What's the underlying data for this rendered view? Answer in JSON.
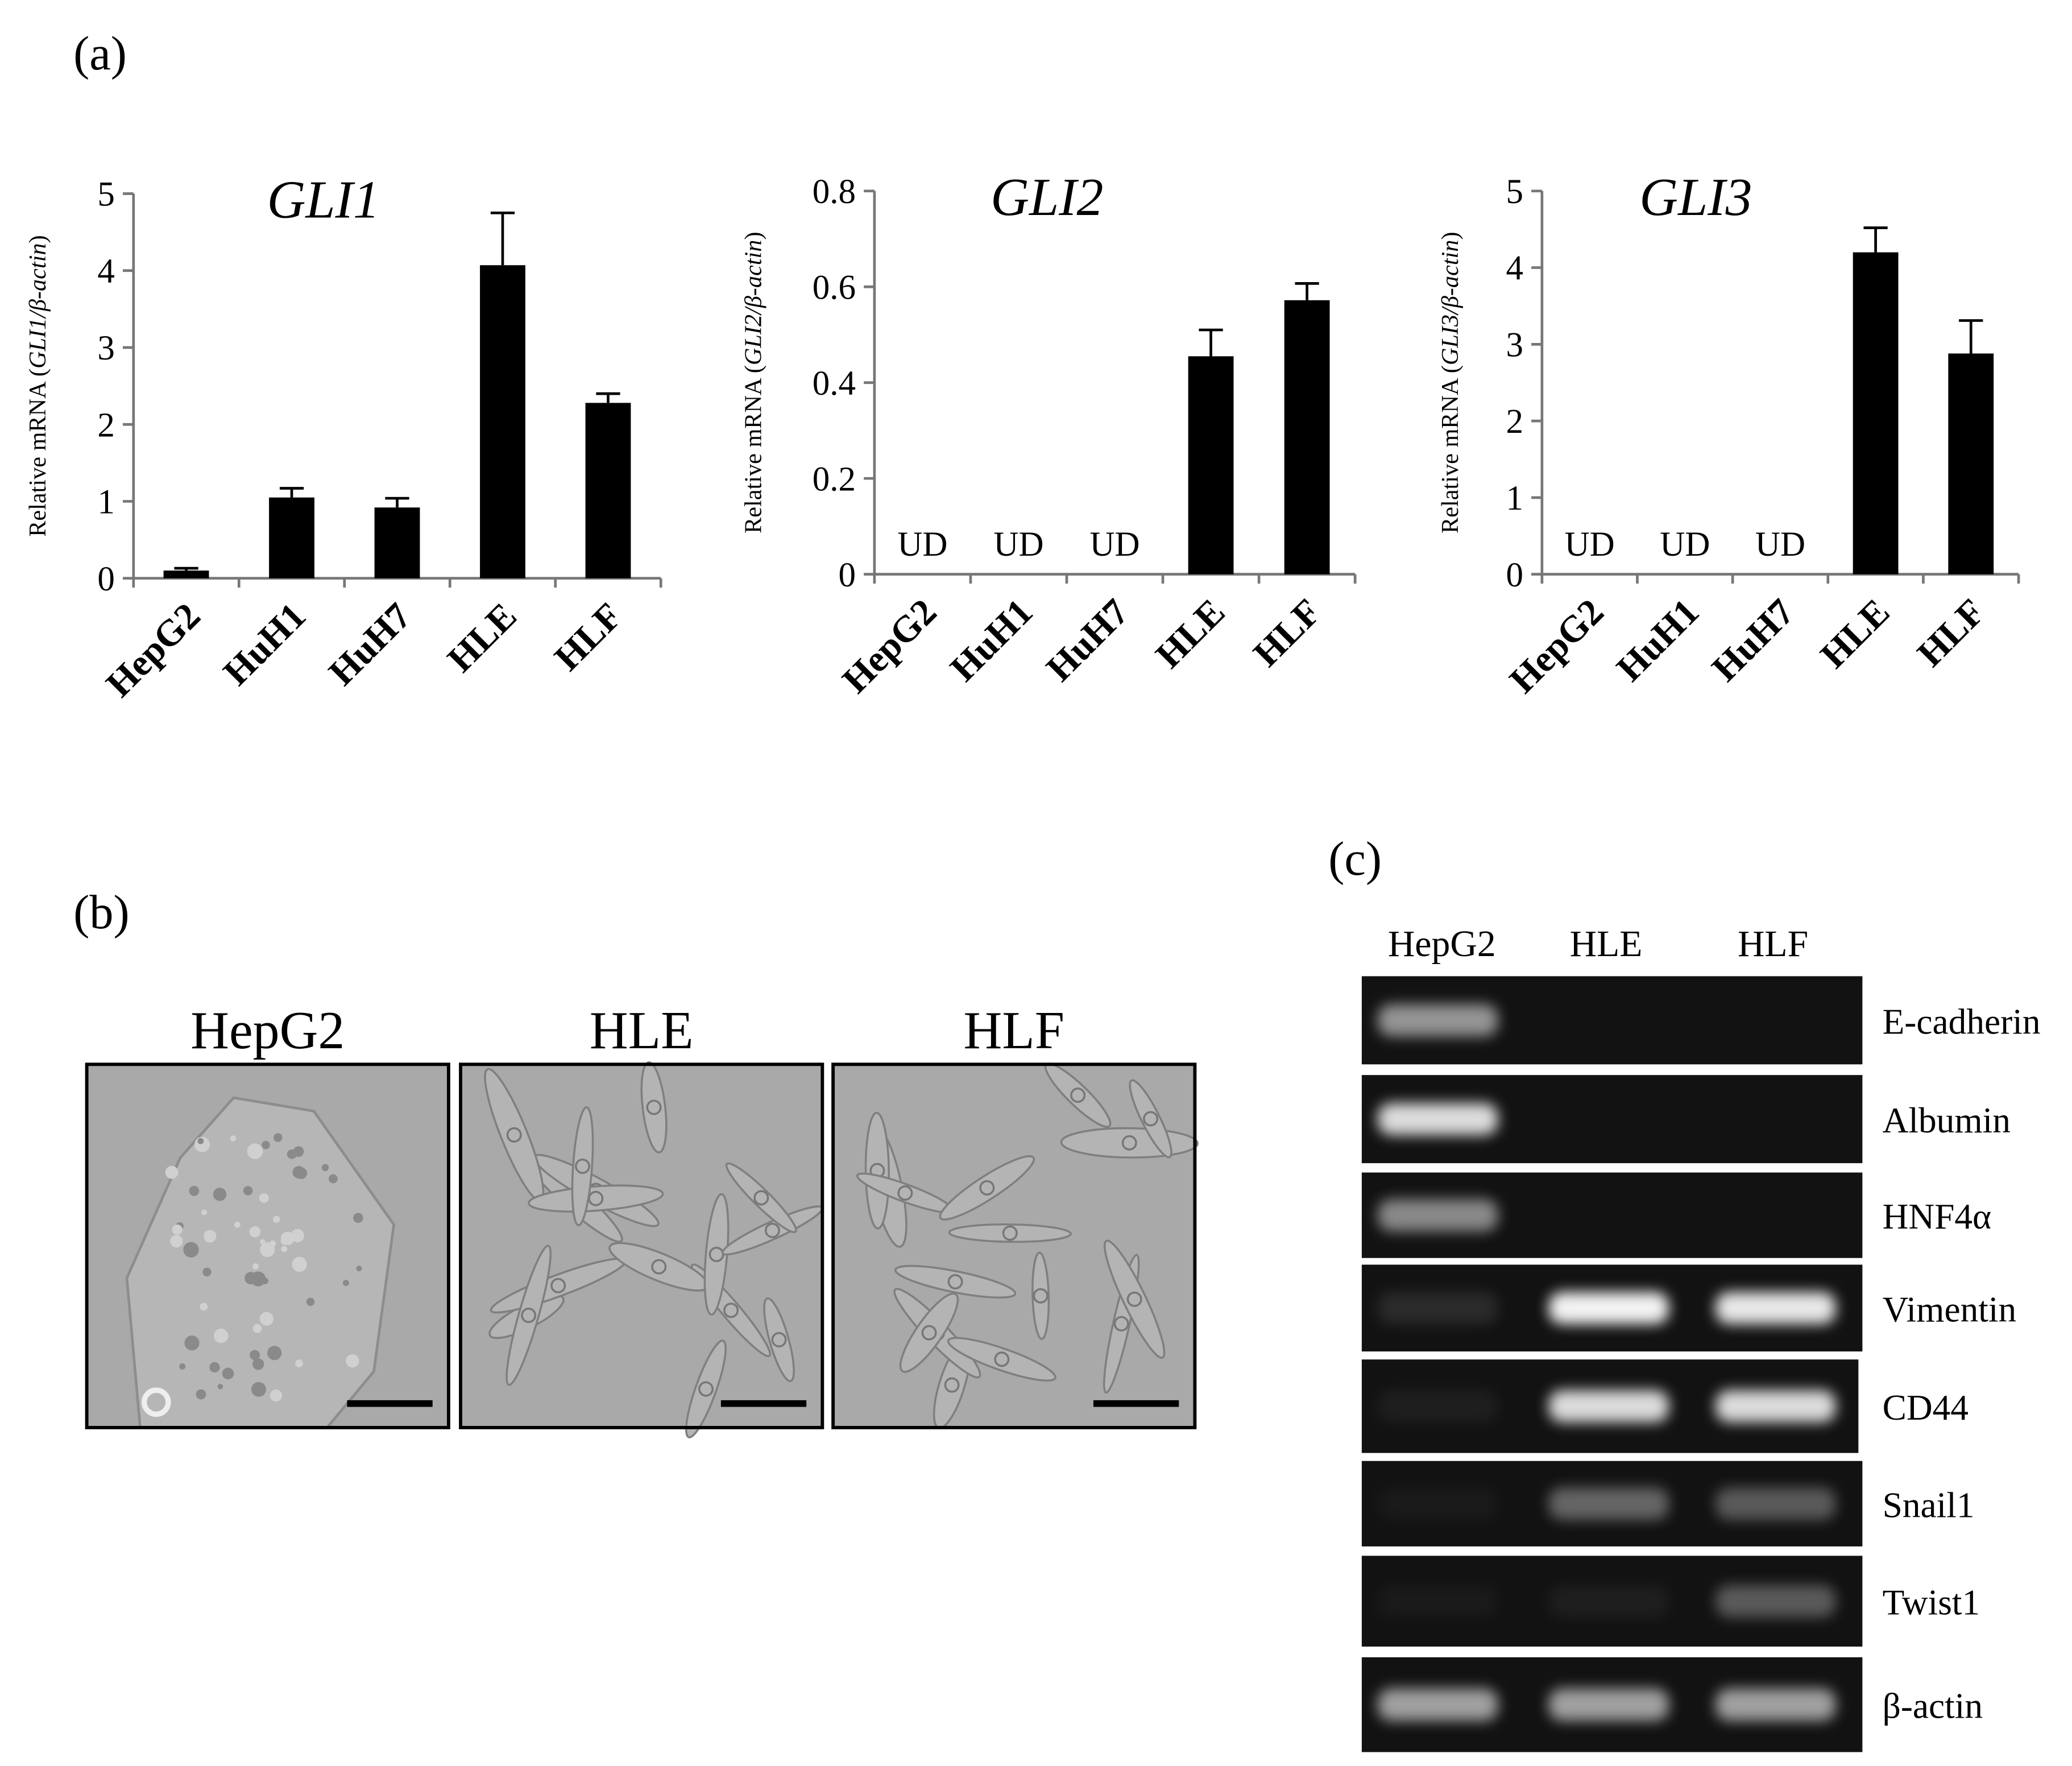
{
  "figure_labels": {
    "a": "(a)",
    "b": "(b)",
    "c": "(c)"
  },
  "chart_data": [
    {
      "type": "bar",
      "title": "GLI1",
      "y_label": [
        "Relative mRNA (",
        "GLI1/β-actin",
        ")"
      ],
      "categories": [
        "HepG2",
        "HuH1",
        "HuH7",
        "HLE",
        "HLF"
      ],
      "values": [
        0.1,
        1.05,
        0.92,
        4.07,
        2.28
      ],
      "errors": [
        0.03,
        0.12,
        0.12,
        0.68,
        0.12
      ],
      "color": "#000000",
      "ylim": [
        0,
        5
      ],
      "yticks": [
        0,
        1,
        2,
        3,
        4,
        5
      ]
    },
    {
      "type": "bar",
      "title": "GLI2",
      "y_label": [
        "Relative mRNA (",
        "GLI2/β-actin",
        ")"
      ],
      "categories": [
        "HepG2",
        "HuH1",
        "HuH7",
        "HLE",
        "HLF"
      ],
      "values": [
        null,
        null,
        null,
        0.455,
        0.572
      ],
      "errors": [
        null,
        null,
        null,
        0.055,
        0.035
      ],
      "value_labels": [
        "UD",
        "UD",
        "UD",
        null,
        null
      ],
      "color": "#000000",
      "ylim": [
        0,
        0.8
      ],
      "yticks": [
        0,
        0.2,
        0.4,
        0.6,
        0.8
      ]
    },
    {
      "type": "bar",
      "title": "GLI3",
      "y_label": [
        "Relative mRNA (",
        "GLI3/β-actin",
        ")"
      ],
      "categories": [
        "HepG2",
        "HuH1",
        "HuH7",
        "HLE",
        "HLF"
      ],
      "values": [
        null,
        null,
        null,
        4.2,
        2.88
      ],
      "errors": [
        null,
        null,
        null,
        0.32,
        0.43
      ],
      "value_labels": [
        "UD",
        "UD",
        "UD",
        null,
        null
      ],
      "color": "#000000",
      "ylim": [
        0,
        5
      ],
      "yticks": [
        0,
        1,
        2,
        3,
        4,
        5
      ]
    }
  ],
  "micrographs": {
    "titles": [
      "HepG2",
      "HLE",
      "HLF"
    ]
  },
  "gel": {
    "lanes": [
      "HepG2",
      "HLE",
      "HLF"
    ],
    "genes": [
      "E-cadherin",
      "Albumin",
      "HNF4α",
      "Vimentin",
      "CD44",
      "Snail1",
      "Twist1",
      "β-actin"
    ]
  }
}
